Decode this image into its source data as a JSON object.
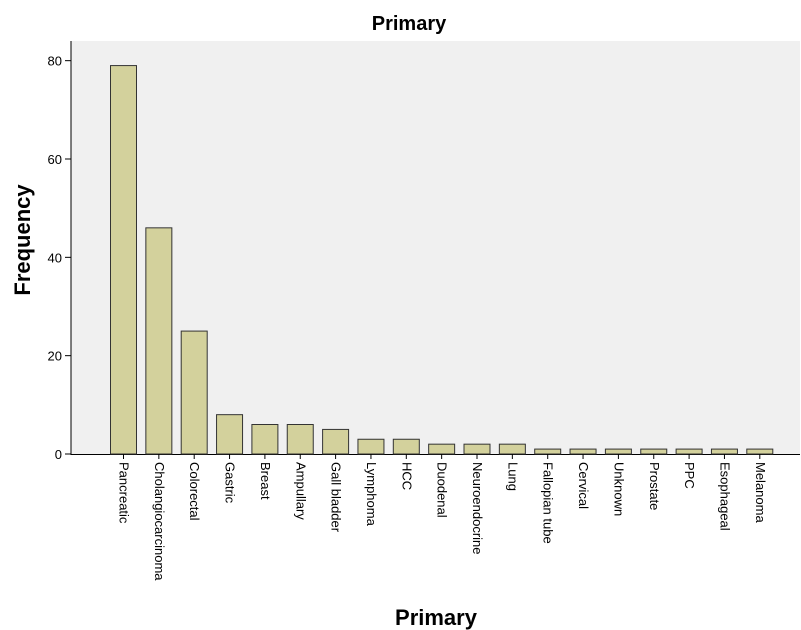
{
  "chart_data": {
    "type": "bar",
    "title": "Primary",
    "xlabel": "Primary",
    "ylabel": "Frequency",
    "ylim": [
      0,
      84
    ],
    "yticks": [
      0,
      20,
      40,
      60,
      80
    ],
    "grid": false,
    "bar_color": "#d3d19c",
    "bar_edge_color": "#333333",
    "plot_background": "#f0f0f0",
    "categories": [
      "Pancreatic",
      "Cholangiocarcinoma",
      "Colorectal",
      "Gastric",
      "Breast",
      "Ampullary",
      "Gall bladder",
      "Lymphoma",
      "HCC",
      "Duodenal",
      "Neuroendocrine",
      "Lung",
      "Fallopian tube",
      "Cervical",
      "Unknown",
      "Prostate",
      "PPC",
      "Esophageal",
      "Melanoma"
    ],
    "values": [
      79,
      46,
      25,
      8,
      6,
      6,
      5,
      3,
      3,
      2,
      2,
      2,
      1,
      1,
      1,
      1,
      1,
      1,
      1
    ]
  }
}
